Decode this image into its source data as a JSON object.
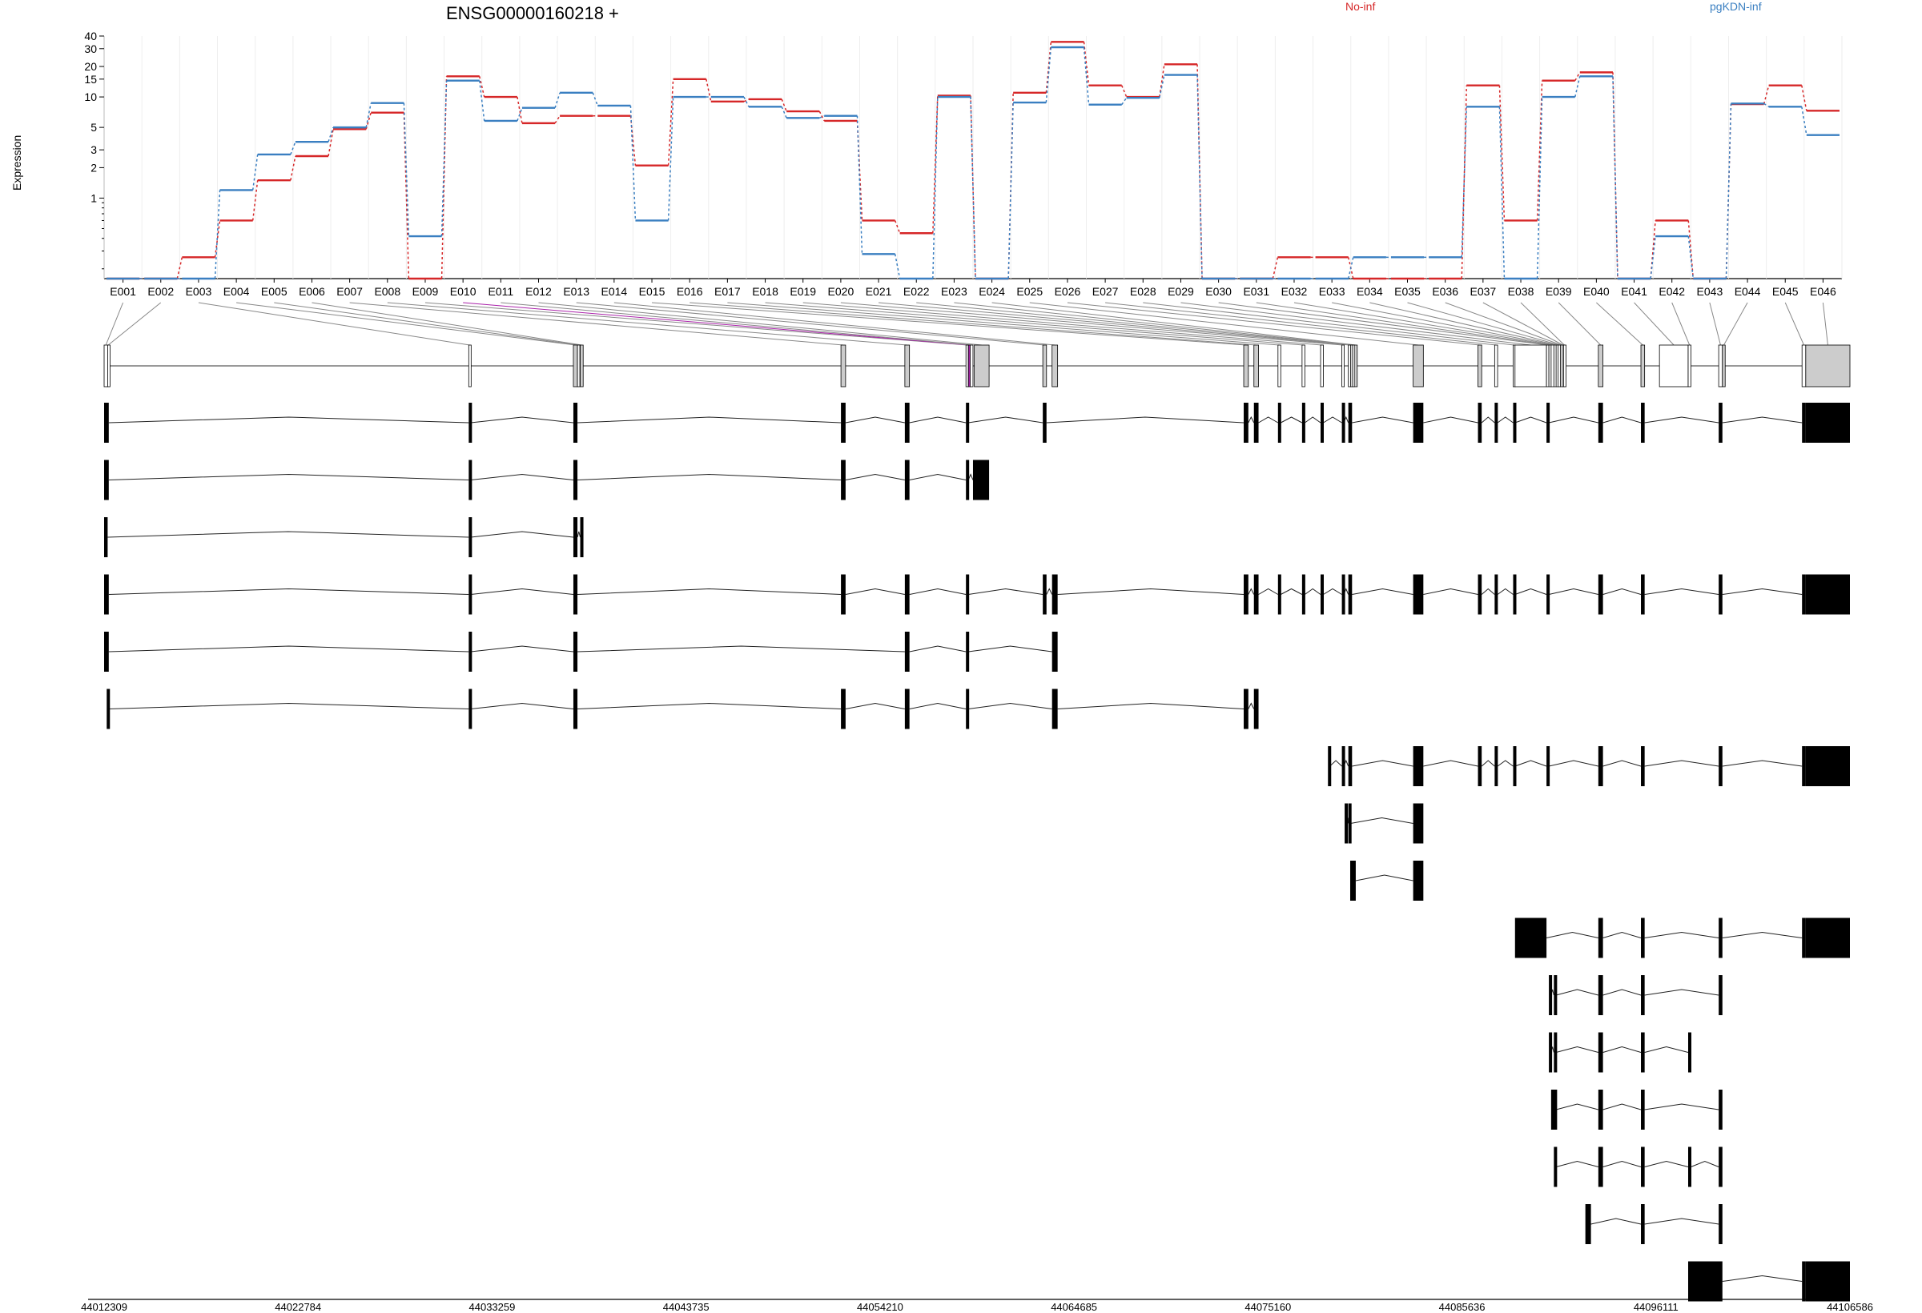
{
  "chart_data": {
    "type": "line",
    "title": "ENSG00000160218 +",
    "ylabel": "Expression",
    "y_scale": "log",
    "y_ticks": [
      1,
      2,
      3,
      5,
      10,
      15,
      20,
      30,
      40
    ],
    "categories": [
      "E001",
      "E002",
      "E003",
      "E004",
      "E005",
      "E006",
      "E007",
      "E008",
      "E009",
      "E010",
      "E011",
      "E012",
      "E013",
      "E014",
      "E015",
      "E016",
      "E017",
      "E018",
      "E019",
      "E020",
      "E021",
      "E022",
      "E023",
      "E024",
      "E025",
      "E026",
      "E027",
      "E028",
      "E029",
      "E030",
      "E031",
      "E032",
      "E033",
      "E034",
      "E035",
      "E036",
      "E037",
      "E038",
      "E039",
      "E040",
      "E041",
      "E042",
      "E043",
      "E044",
      "E045",
      "E046"
    ],
    "series": [
      {
        "name": "No-inf",
        "color": "#d62728",
        "values": [
          0.16,
          0.16,
          0.26,
          0.6,
          1.5,
          2.6,
          4.8,
          7,
          0.16,
          16,
          10,
          5.5,
          6.5,
          6.5,
          2.1,
          15,
          9,
          9.5,
          7.2,
          5.8,
          0.6,
          0.45,
          10.3,
          0.16,
          11,
          35,
          13,
          10,
          21,
          0.16,
          0.16,
          0.26,
          0.26,
          0.16,
          0.16,
          0.16,
          13,
          0.6,
          14.5,
          17.5,
          0.16,
          0.6,
          0.16,
          8.5,
          13,
          7.3
        ]
      },
      {
        "name": "pgKDN-inf",
        "color": "#3a7fc1",
        "values": [
          0.16,
          0.16,
          0.16,
          1.2,
          2.7,
          3.6,
          5,
          8.7,
          0.42,
          14.5,
          5.8,
          7.8,
          11,
          8.2,
          0.6,
          10,
          10,
          8,
          6.2,
          6.5,
          0.28,
          0.16,
          10,
          0.16,
          8.8,
          31,
          8.4,
          9.8,
          16.5,
          0.16,
          0.16,
          0.16,
          0.16,
          0.26,
          0.26,
          0.26,
          8,
          0.16,
          10,
          16,
          0.16,
          0.42,
          0.16,
          8.6,
          8,
          4.2
        ]
      }
    ],
    "genomic_ticks": [
      "44012309",
      "44022784",
      "44033259",
      "44043735",
      "44054210",
      "44064685",
      "44075160",
      "44085636",
      "44096111",
      "44106586"
    ],
    "genomic_range": [
      44012309,
      44106586
    ],
    "exons": [
      {
        "id": "E001",
        "start": 44012309,
        "end": 44012500,
        "fill": "#ffffff"
      },
      {
        "id": "E002",
        "start": 44012500,
        "end": 44012560,
        "fill": "#ffffff"
      },
      {
        "id": "E003",
        "start": 44032000,
        "end": 44032110,
        "fill": "#ffffff"
      },
      {
        "id": "E004",
        "start": 44037650,
        "end": 44037870,
        "fill": "#cccccc"
      },
      {
        "id": "E005",
        "start": 44037870,
        "end": 44037990,
        "fill": "#ffffff"
      },
      {
        "id": "E006",
        "start": 44038020,
        "end": 44038180,
        "fill": "#cccccc"
      },
      {
        "id": "E007",
        "start": 44052100,
        "end": 44052350,
        "fill": "#cccccc"
      },
      {
        "id": "E008",
        "start": 44055550,
        "end": 44055800,
        "fill": "#cccccc"
      },
      {
        "id": "E009",
        "start": 44058850,
        "end": 44058980,
        "fill": "#ffffff"
      },
      {
        "id": "E010",
        "start": 44058980,
        "end": 44059080,
        "fill": "#aa22aa"
      },
      {
        "id": "E011",
        "start": 44059080,
        "end": 44059230,
        "fill": "#ffffff"
      },
      {
        "id": "E012",
        "start": 44059300,
        "end": 44060100,
        "fill": "#cccccc"
      },
      {
        "id": "E013",
        "start": 44063000,
        "end": 44063200,
        "fill": "#cccccc"
      },
      {
        "id": "E014",
        "start": 44063500,
        "end": 44063800,
        "fill": "#cccccc"
      },
      {
        "id": "E015",
        "start": 44073850,
        "end": 44074100,
        "fill": "#cccccc"
      },
      {
        "id": "E016",
        "start": 44074400,
        "end": 44074650,
        "fill": "#cccccc"
      },
      {
        "id": "E017",
        "start": 44075700,
        "end": 44075850,
        "fill": "#ffffff"
      },
      {
        "id": "E018",
        "start": 44077000,
        "end": 44077150,
        "fill": "#ffffff"
      },
      {
        "id": "E019",
        "start": 44078000,
        "end": 44078150,
        "fill": "#ffffff"
      },
      {
        "id": "E020",
        "start": 44079150,
        "end": 44079250,
        "fill": "#ffffff"
      },
      {
        "id": "E021",
        "start": 44079500,
        "end": 44079620,
        "fill": "#ffffff"
      },
      {
        "id": "E022",
        "start": 44079620,
        "end": 44079700,
        "fill": "#ffffff"
      },
      {
        "id": "E023",
        "start": 44079700,
        "end": 44079800,
        "fill": "#ffffff"
      },
      {
        "id": "E024",
        "start": 44079820,
        "end": 44079980,
        "fill": "#cccccc"
      },
      {
        "id": "E025",
        "start": 44083000,
        "end": 44083550,
        "fill": "#cccccc"
      },
      {
        "id": "E026",
        "start": 44086500,
        "end": 44086700,
        "fill": "#cccccc"
      },
      {
        "id": "E027",
        "start": 44087400,
        "end": 44087560,
        "fill": "#ffffff"
      },
      {
        "id": "E028",
        "start": 44088400,
        "end": 44088500,
        "fill": "#ffffff"
      },
      {
        "id": "E029",
        "start": 44088500,
        "end": 44090200,
        "fill": "#ffffff"
      },
      {
        "id": "E030",
        "start": 44090200,
        "end": 44090330,
        "fill": "#ffffff"
      },
      {
        "id": "E031",
        "start": 44090330,
        "end": 44090450,
        "fill": "#ffffff"
      },
      {
        "id": "E032",
        "start": 44090450,
        "end": 44090600,
        "fill": "#ffffff"
      },
      {
        "id": "E033",
        "start": 44090600,
        "end": 44090720,
        "fill": "#ffffff"
      },
      {
        "id": "E034",
        "start": 44090720,
        "end": 44090830,
        "fill": "#ffffff"
      },
      {
        "id": "E035",
        "start": 44090830,
        "end": 44090950,
        "fill": "#ffffff"
      },
      {
        "id": "E036",
        "start": 44090950,
        "end": 44091050,
        "fill": "#ffffff"
      },
      {
        "id": "E037",
        "start": 44091050,
        "end": 44091130,
        "fill": "#ffffff"
      },
      {
        "id": "E038",
        "start": 44091130,
        "end": 44091200,
        "fill": "#ffffff"
      },
      {
        "id": "E039",
        "start": 44093000,
        "end": 44093250,
        "fill": "#cccccc"
      },
      {
        "id": "E040",
        "start": 44095300,
        "end": 44095500,
        "fill": "#cccccc"
      },
      {
        "id": "E041",
        "start": 44096300,
        "end": 44097850,
        "fill": "#ffffff"
      },
      {
        "id": "E042",
        "start": 44097850,
        "end": 44098000,
        "fill": "#ffffff"
      },
      {
        "id": "E043",
        "start": 44099500,
        "end": 44099700,
        "fill": "#ffffff"
      },
      {
        "id": "E044",
        "start": 44099700,
        "end": 44099850,
        "fill": "#cccccc"
      },
      {
        "id": "E045",
        "start": 44104000,
        "end": 44104200,
        "fill": "#ffffff"
      },
      {
        "id": "E046",
        "start": 44104200,
        "end": 44106586,
        "fill": "#cccccc"
      }
    ],
    "transcripts": [
      {
        "exons": [
          [
            44012309,
            44012560
          ],
          [
            44032000,
            44032110
          ],
          [
            44037650,
            44037870
          ],
          [
            44052100,
            44052350
          ],
          [
            44055550,
            44055800
          ],
          [
            44058850,
            44058980
          ],
          [
            44063000,
            44063200
          ],
          [
            44073850,
            44074100
          ],
          [
            44074400,
            44074650
          ],
          [
            44075700,
            44075850
          ],
          [
            44077000,
            44077150
          ],
          [
            44078000,
            44078150
          ],
          [
            44079150,
            44079250
          ],
          [
            44079500,
            44079700
          ],
          [
            44083000,
            44083550
          ],
          [
            44086500,
            44086700
          ],
          [
            44087400,
            44087560
          ],
          [
            44088400,
            44088500
          ],
          [
            44090200,
            44090330
          ],
          [
            44093000,
            44093250
          ],
          [
            44095300,
            44095500
          ],
          [
            44099500,
            44099700
          ],
          [
            44104000,
            44104200
          ],
          [
            44104200,
            44106586
          ]
        ]
      },
      {
        "exons": [
          [
            44012309,
            44012560
          ],
          [
            44032000,
            44032110
          ],
          [
            44037650,
            44037870
          ],
          [
            44052100,
            44052350
          ],
          [
            44055550,
            44055800
          ],
          [
            44058850,
            44058980
          ],
          [
            44059230,
            44060100
          ]
        ]
      },
      {
        "exons": [
          [
            44012309,
            44012500
          ],
          [
            44032000,
            44032110
          ],
          [
            44037650,
            44037870
          ],
          [
            44038020,
            44038180
          ]
        ]
      },
      {
        "exons": [
          [
            44012309,
            44012560
          ],
          [
            44032000,
            44032110
          ],
          [
            44037650,
            44037870
          ],
          [
            44052100,
            44052350
          ],
          [
            44055550,
            44055800
          ],
          [
            44058850,
            44058980
          ],
          [
            44063000,
            44063200
          ],
          [
            44063500,
            44063800
          ],
          [
            44073850,
            44074100
          ],
          [
            44074400,
            44074650
          ],
          [
            44075700,
            44075850
          ],
          [
            44077000,
            44077150
          ],
          [
            44078000,
            44078150
          ],
          [
            44079150,
            44079250
          ],
          [
            44079500,
            44079700
          ],
          [
            44083000,
            44083550
          ],
          [
            44086500,
            44086700
          ],
          [
            44087400,
            44087560
          ],
          [
            44088400,
            44088500
          ],
          [
            44090200,
            44090330
          ],
          [
            44093000,
            44093250
          ],
          [
            44095300,
            44095500
          ],
          [
            44099500,
            44099700
          ],
          [
            44104000,
            44104200
          ],
          [
            44104200,
            44106586
          ]
        ]
      },
      {
        "exons": [
          [
            44012309,
            44012560
          ],
          [
            44032000,
            44032110
          ],
          [
            44037650,
            44037870
          ],
          [
            44055550,
            44055800
          ],
          [
            44058850,
            44058980
          ],
          [
            44063500,
            44063800
          ]
        ]
      },
      {
        "exons": [
          [
            44012450,
            44012560
          ],
          [
            44032000,
            44032110
          ],
          [
            44037650,
            44037870
          ],
          [
            44052100,
            44052350
          ],
          [
            44055550,
            44055800
          ],
          [
            44058850,
            44058980
          ],
          [
            44063500,
            44063800
          ],
          [
            44073850,
            44074100
          ],
          [
            44074400,
            44074650
          ]
        ]
      },
      {
        "exons": [
          [
            44078400,
            44078500
          ],
          [
            44079150,
            44079250
          ],
          [
            44079500,
            44079700
          ],
          [
            44083000,
            44083550
          ],
          [
            44086500,
            44086700
          ],
          [
            44087400,
            44087560
          ],
          [
            44088400,
            44088500
          ],
          [
            44090200,
            44090330
          ],
          [
            44093000,
            44093250
          ],
          [
            44095300,
            44095500
          ],
          [
            44099500,
            44099700
          ],
          [
            44104000,
            44104200
          ],
          [
            44104200,
            44106586
          ]
        ]
      },
      {
        "exons": [
          [
            44079300,
            44079450
          ],
          [
            44079500,
            44079620
          ],
          [
            44083000,
            44083550
          ]
        ]
      },
      {
        "exons": [
          [
            44079600,
            44079900
          ],
          [
            44083000,
            44083550
          ]
        ]
      },
      {
        "exons": [
          [
            44088500,
            44090200
          ],
          [
            44093000,
            44093250
          ],
          [
            44095300,
            44095500
          ],
          [
            44099500,
            44099700
          ],
          [
            44104000,
            44104200
          ],
          [
            44104200,
            44106586
          ]
        ]
      },
      {
        "exons": [
          [
            44090330,
            44090450
          ],
          [
            44090600,
            44090720
          ],
          [
            44093000,
            44093250
          ],
          [
            44095300,
            44095500
          ],
          [
            44099500,
            44099700
          ]
        ]
      },
      {
        "exons": [
          [
            44090330,
            44090450
          ],
          [
            44090600,
            44090720
          ],
          [
            44093000,
            44093250
          ],
          [
            44095300,
            44095500
          ],
          [
            44097850,
            44098000
          ]
        ]
      },
      {
        "exons": [
          [
            44090450,
            44090600
          ],
          [
            44090600,
            44090720
          ],
          [
            44093000,
            44093250
          ],
          [
            44095300,
            44095500
          ],
          [
            44099500,
            44099700
          ]
        ]
      },
      {
        "exons": [
          [
            44090600,
            44090720
          ],
          [
            44093000,
            44093250
          ],
          [
            44095300,
            44095500
          ],
          [
            44097850,
            44098000
          ],
          [
            44099500,
            44099700
          ]
        ]
      },
      {
        "exons": [
          [
            44092300,
            44092600
          ],
          [
            44095300,
            44095500
          ],
          [
            44099500,
            44099700
          ]
        ]
      },
      {
        "exons": [
          [
            44097850,
            44099700
          ],
          [
            44104000,
            44104200
          ],
          [
            44104200,
            44106586
          ]
        ]
      }
    ]
  }
}
